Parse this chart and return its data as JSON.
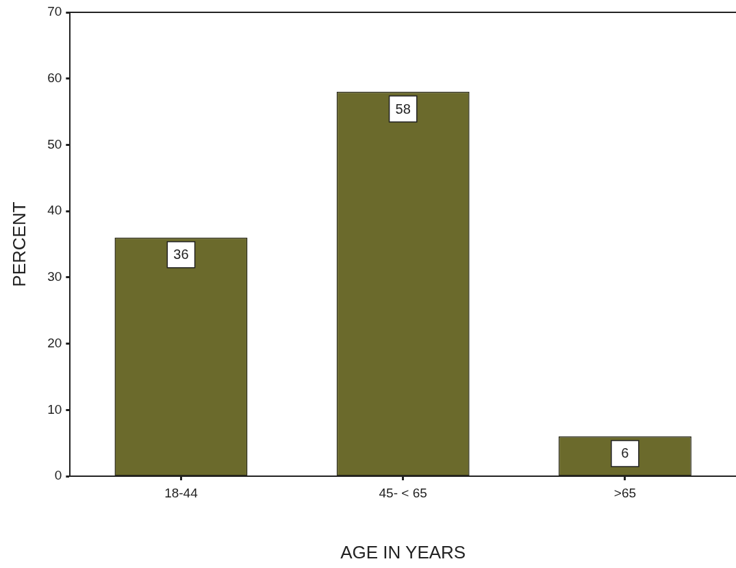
{
  "chart_data": {
    "type": "bar",
    "xlabel": "AGE IN YEARS",
    "ylabel": "PERCENT",
    "categories": [
      "18-44",
      "45- < 65",
      ">65"
    ],
    "values": [
      36,
      58,
      6
    ],
    "color": "#6b6a2c",
    "ylim": [
      0,
      70
    ],
    "yticks": [
      0,
      10,
      20,
      30,
      40,
      50,
      60,
      70
    ],
    "data_labels": true
  }
}
